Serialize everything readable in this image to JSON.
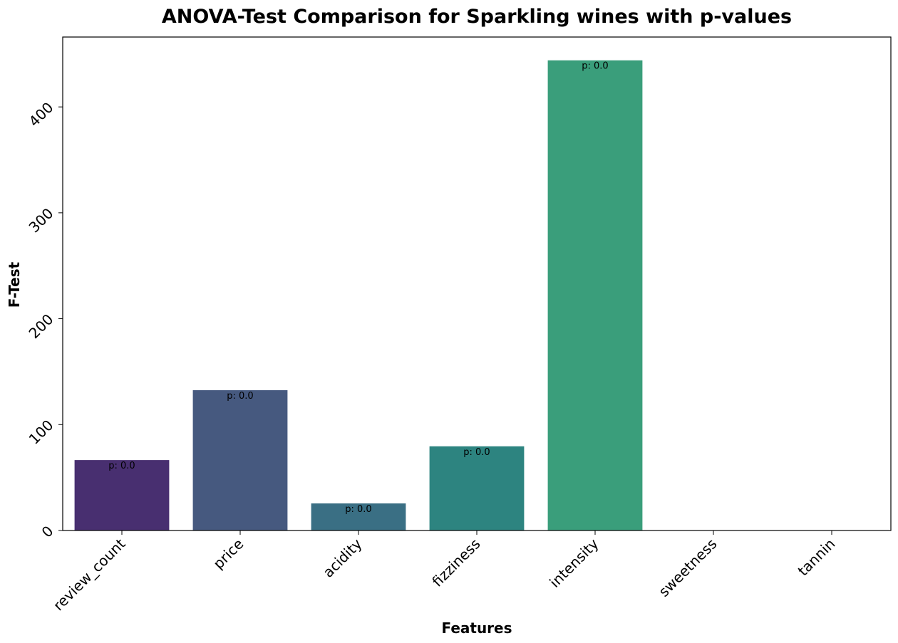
{
  "chart_data": {
    "type": "bar",
    "title": "ANOVA-Test Comparison for Sparkling wines with p-values",
    "xlabel": "Features",
    "ylabel": "F-Test",
    "categories": [
      "review_count",
      "price",
      "acidity",
      "fizziness",
      "intensity",
      "sweetness",
      "tannin"
    ],
    "values": [
      66.5,
      132.5,
      25.6,
      79.5,
      444.0,
      0,
      0
    ],
    "bar_colors": [
      "#482f70",
      "#46597f",
      "#3a6f84",
      "#2d8480",
      "#3a9e7b",
      "#36a879",
      "#36a879"
    ],
    "data_labels": [
      "p: 0.0",
      "p: 0.0",
      "p: 0.0",
      "p: 0.0",
      "p: 0.0",
      "",
      ""
    ],
    "yticks": [
      0,
      100,
      200,
      300,
      400
    ],
    "ylim": [
      0,
      466
    ],
    "grid": false,
    "legend": "none"
  }
}
